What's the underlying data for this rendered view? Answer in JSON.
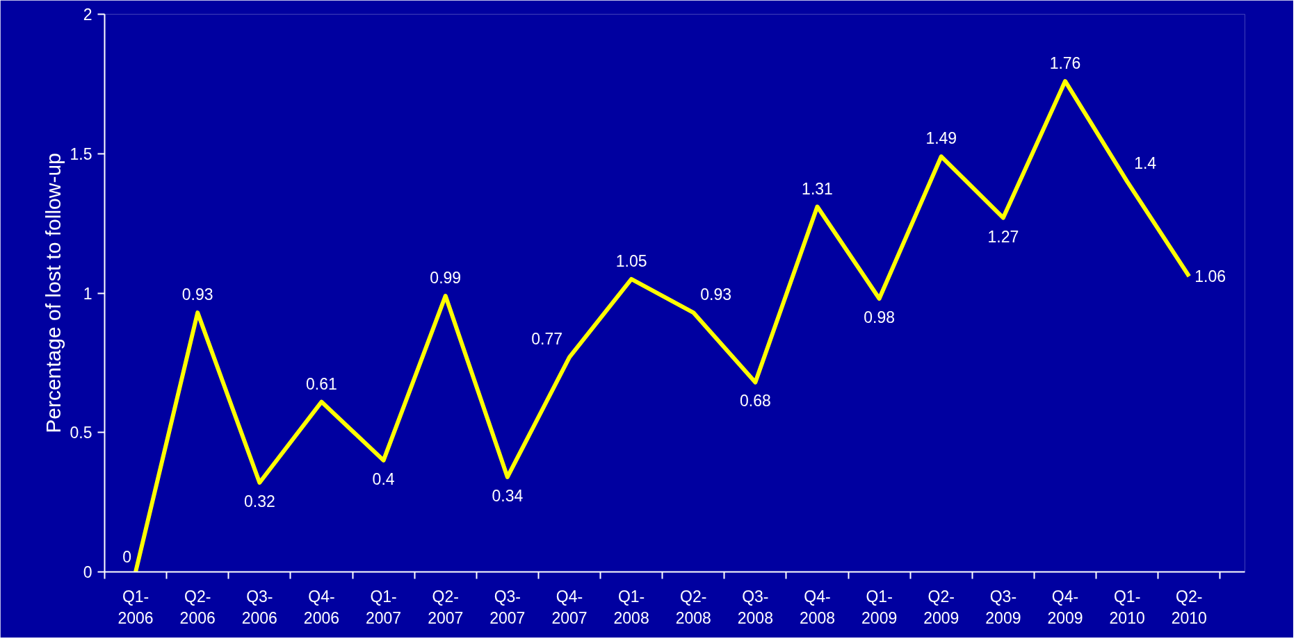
{
  "chart_data": {
    "type": "line",
    "ylabel": "Percentage of lost to follow-up",
    "categories": [
      "Q1-\n2006",
      "Q2-\n2006",
      "Q3-\n2006",
      "Q4-\n2006",
      "Q1-\n2007",
      "Q2-\n2007",
      "Q3-\n2007",
      "Q4-\n2007",
      "Q1-\n2008",
      "Q2-\n2008",
      "Q3-\n2008",
      "Q4-\n2008",
      "Q1-\n2009",
      "Q2-\n2009",
      "Q3-\n2009",
      "Q4-\n2009",
      "Q1-\n2010",
      "Q2-\n2010"
    ],
    "series": [
      {
        "color": "#ffff00",
        "values": [
          0,
          0.93,
          0.32,
          0.61,
          0.4,
          0.99,
          0.34,
          0.77,
          1.05,
          0.93,
          0.68,
          1.31,
          0.98,
          1.49,
          1.27,
          1.76,
          1.4,
          1.06
        ]
      }
    ],
    "ylim": [
      0,
      2
    ],
    "yticks": [
      0,
      0.5,
      1,
      1.5,
      2
    ],
    "grid": false,
    "marker": "none",
    "line_style": "solid",
    "data_labels": true
  }
}
